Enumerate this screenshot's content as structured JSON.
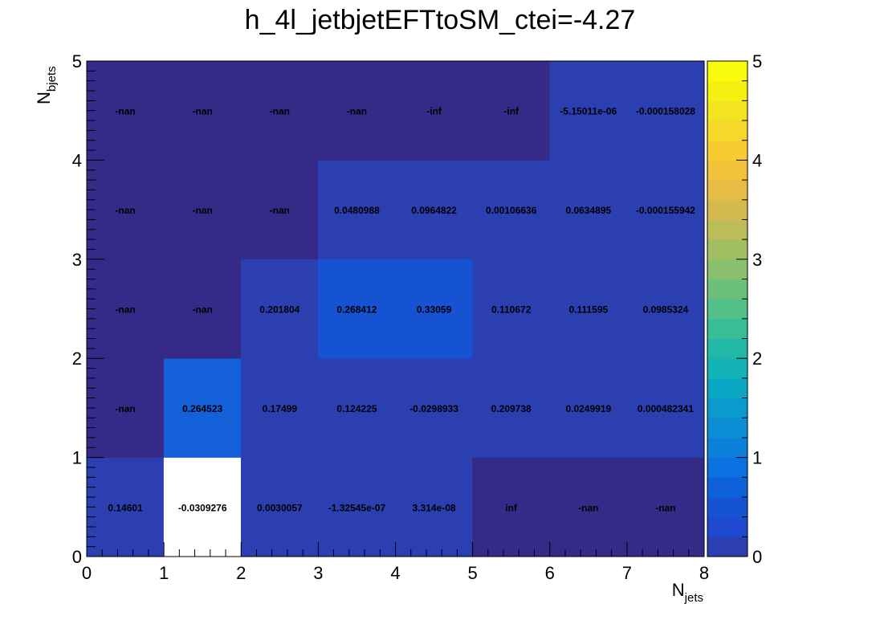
{
  "chart_data": {
    "type": "heatmap",
    "title": "h_4l_jetbjetEFTtoSM_ctei=-4.27",
    "xlabel": {
      "base": "N",
      "sub": "jets"
    },
    "ylabel": {
      "base": "N",
      "sub": "bjets"
    },
    "xlim": [
      0,
      8
    ],
    "ylim": [
      0,
      5
    ],
    "zlim": [
      0,
      5
    ],
    "x_ticks": [
      "0",
      "1",
      "2",
      "3",
      "4",
      "5",
      "6",
      "7",
      "8"
    ],
    "y_ticks": [
      "0",
      "1",
      "2",
      "3",
      "4",
      "5"
    ],
    "z_ticks": [
      "0",
      "1",
      "2",
      "3",
      "4",
      "5"
    ],
    "cells": [
      [
        {
          "label": "0.14601",
          "value": 0.14601
        },
        {
          "label": "-0.0309276",
          "value": -0.0309276
        },
        {
          "label": "0.0030057",
          "value": 0.0030057
        },
        {
          "label": "-1.32545e-07",
          "value": -1.32545e-07
        },
        {
          "label": "3.314e-08",
          "value": 3.314e-08
        },
        {
          "label": "inf",
          "value": null
        },
        {
          "label": "-nan",
          "value": null
        },
        {
          "label": "-nan",
          "value": null
        }
      ],
      [
        {
          "label": "-nan",
          "value": null
        },
        {
          "label": "0.264523",
          "value": 0.264523
        },
        {
          "label": "0.17499",
          "value": 0.17499
        },
        {
          "label": "0.124225",
          "value": 0.124225
        },
        {
          "label": "-0.0298933",
          "value": -0.0298933
        },
        {
          "label": "0.209738",
          "value": 0.209738
        },
        {
          "label": "0.0249919",
          "value": 0.0249919
        },
        {
          "label": "0.000482341",
          "value": 0.000482341
        }
      ],
      [
        {
          "label": "-nan",
          "value": null
        },
        {
          "label": "-nan",
          "value": null
        },
        {
          "label": "0.201804",
          "value": 0.201804
        },
        {
          "label": "0.268412",
          "value": 0.268412
        },
        {
          "label": "0.33059",
          "value": 0.33059
        },
        {
          "label": "0.110672",
          "value": 0.110672
        },
        {
          "label": "0.111595",
          "value": 0.111595
        },
        {
          "label": "0.0985324",
          "value": 0.0985324
        }
      ],
      [
        {
          "label": "-nan",
          "value": null
        },
        {
          "label": "-nan",
          "value": null
        },
        {
          "label": "-nan",
          "value": null
        },
        {
          "label": "0.0480988",
          "value": 0.0480988
        },
        {
          "label": "0.0964822",
          "value": 0.0964822
        },
        {
          "label": "0.00106636",
          "value": 0.00106636
        },
        {
          "label": "0.0634895",
          "value": 0.0634895
        },
        {
          "label": "-0.000155942",
          "value": -0.000155942
        }
      ],
      [
        {
          "label": "-nan",
          "value": null
        },
        {
          "label": "-nan",
          "value": null
        },
        {
          "label": "-nan",
          "value": null
        },
        {
          "label": "-nan",
          "value": null
        },
        {
          "label": "-inf",
          "value": null
        },
        {
          "label": "-inf",
          "value": null
        },
        {
          "label": "-5.15011e-06",
          "value": -5.15011e-06
        },
        {
          "label": "-0.000158028",
          "value": -0.000158028
        }
      ]
    ],
    "cell_colors": [
      [
        "#2b3fb0",
        "#ffffff",
        "#2b3fb0",
        "#2b3fb0",
        "#2b3fb0",
        "#352a87",
        "#352a87",
        "#352a87"
      ],
      [
        "#352a87",
        "#1460d8",
        "#2b3fb0",
        "#2b3fb0",
        "#2b3fb0",
        "#2b3fb0",
        "#2b3fb0",
        "#2b3fb0"
      ],
      [
        "#352a87",
        "#352a87",
        "#2b3fb0",
        "#1553d2",
        "#1553d2",
        "#2b3fb0",
        "#2b3fb0",
        "#2b3fb0"
      ],
      [
        "#352a87",
        "#352a87",
        "#352a87",
        "#2b3fb0",
        "#2b3fb0",
        "#2b3fb0",
        "#2b3fb0",
        "#2b3fb0"
      ],
      [
        "#352a87",
        "#352a87",
        "#352a87",
        "#352a87",
        "#352a87",
        "#352a87",
        "#2b3fb0",
        "#2b3fb0"
      ]
    ],
    "palette": [
      "#2b3fb0",
      "#1e4ad2",
      "#1553d2",
      "#0d62dc",
      "#0b70e0",
      "#0b80da",
      "#0b8ed4",
      "#0a9bcc",
      "#0aa8c4",
      "#12b2b6",
      "#22b8a6",
      "#38bd96",
      "#52c088",
      "#6cc07a",
      "#88c06e",
      "#a2be62",
      "#bcbc58",
      "#d4ba4e",
      "#e6bc44",
      "#f2c23a",
      "#f8cc30",
      "#f6d82a",
      "#f4e420",
      "#f6f010",
      "#f9fb0e"
    ],
    "grid": false,
    "legend": "colorbar-right"
  }
}
